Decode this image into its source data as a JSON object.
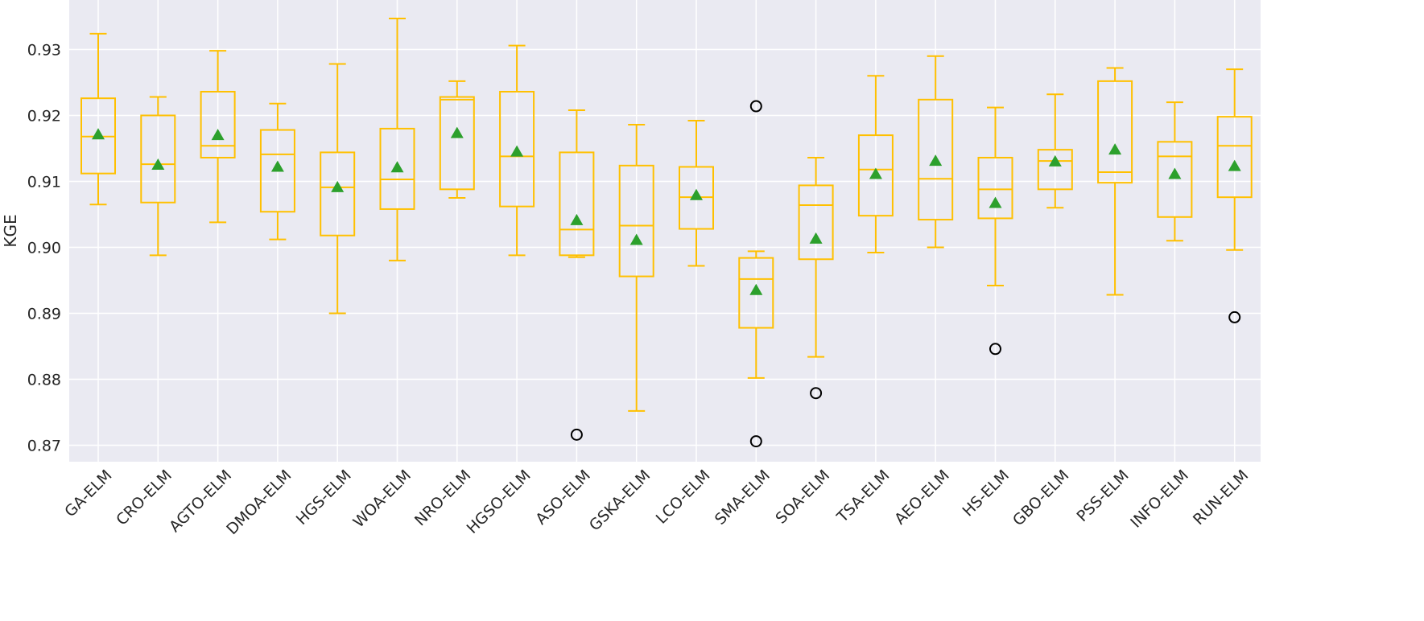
{
  "chart_data": {
    "type": "box",
    "ylabel": "KGE",
    "xlabel": "",
    "title": "",
    "ylim": [
      0.8675,
      0.9375
    ],
    "yticks": [
      0.87,
      0.88,
      0.89,
      0.9,
      0.91,
      0.92,
      0.93
    ],
    "ytick_labels": [
      "0.87",
      "0.88",
      "0.89",
      "0.90",
      "0.91",
      "0.92",
      "0.93"
    ],
    "grid": true,
    "colors": {
      "box": "#FFC000",
      "mean_marker": "#2CA02C",
      "outlier": "#000000",
      "plot_background": "#EAEAF2",
      "grid": "#FFFFFF"
    },
    "categories": [
      "GA-ELM",
      "CRO-ELM",
      "AGTO-ELM",
      "DMOA-ELM",
      "HGS-ELM",
      "WOA-ELM",
      "NRO-ELM",
      "HGSO-ELM",
      "ASO-ELM",
      "GSKA-ELM",
      "LCO-ELM",
      "SMA-ELM",
      "SOA-ELM",
      "TSA-ELM",
      "AEO-ELM",
      "HS-ELM",
      "GBO-ELM",
      "PSS-ELM",
      "INFO-ELM",
      "RUN-ELM"
    ],
    "boxes": [
      {
        "whisker_low": 0.9065,
        "q1": 0.9112,
        "median": 0.9168,
        "q3": 0.9226,
        "whisker_high": 0.9324,
        "mean": 0.9171,
        "outliers": []
      },
      {
        "whisker_low": 0.8988,
        "q1": 0.9068,
        "median": 0.9126,
        "q3": 0.92,
        "whisker_high": 0.9228,
        "mean": 0.9125,
        "outliers": []
      },
      {
        "whisker_low": 0.9038,
        "q1": 0.9136,
        "median": 0.9154,
        "q3": 0.9236,
        "whisker_high": 0.9298,
        "mean": 0.917,
        "outliers": []
      },
      {
        "whisker_low": 0.9012,
        "q1": 0.9054,
        "median": 0.9141,
        "q3": 0.9178,
        "whisker_high": 0.9218,
        "mean": 0.9122,
        "outliers": []
      },
      {
        "whisker_low": 0.89,
        "q1": 0.9018,
        "median": 0.9091,
        "q3": 0.9144,
        "whisker_high": 0.9278,
        "mean": 0.9091,
        "outliers": []
      },
      {
        "whisker_low": 0.898,
        "q1": 0.9058,
        "median": 0.9103,
        "q3": 0.918,
        "whisker_high": 0.9347,
        "mean": 0.9121,
        "outliers": []
      },
      {
        "whisker_low": 0.9075,
        "q1": 0.9088,
        "median": 0.9224,
        "q3": 0.9228,
        "whisker_high": 0.9252,
        "mean": 0.9173,
        "outliers": []
      },
      {
        "whisker_low": 0.8988,
        "q1": 0.9062,
        "median": 0.9138,
        "q3": 0.9236,
        "whisker_high": 0.9306,
        "mean": 0.9145,
        "outliers": []
      },
      {
        "whisker_low": 0.8985,
        "q1": 0.8988,
        "median": 0.9027,
        "q3": 0.9144,
        "whisker_high": 0.9208,
        "mean": 0.9041,
        "outliers": [
          0.8716
        ]
      },
      {
        "whisker_low": 0.8752,
        "q1": 0.8956,
        "median": 0.9033,
        "q3": 0.9124,
        "whisker_high": 0.9186,
        "mean": 0.9011,
        "outliers": []
      },
      {
        "whisker_low": 0.8972,
        "q1": 0.9028,
        "median": 0.9076,
        "q3": 0.9122,
        "whisker_high": 0.9192,
        "mean": 0.9079,
        "outliers": []
      },
      {
        "whisker_low": 0.8802,
        "q1": 0.8878,
        "median": 0.8952,
        "q3": 0.8984,
        "whisker_high": 0.8994,
        "mean": 0.8935,
        "outliers": [
          0.9214,
          0.8706
        ]
      },
      {
        "whisker_low": 0.8834,
        "q1": 0.8982,
        "median": 0.9064,
        "q3": 0.9094,
        "whisker_high": 0.9136,
        "mean": 0.9013,
        "outliers": [
          0.8779
        ]
      },
      {
        "whisker_low": 0.8992,
        "q1": 0.9048,
        "median": 0.9118,
        "q3": 0.917,
        "whisker_high": 0.926,
        "mean": 0.9111,
        "outliers": []
      },
      {
        "whisker_low": 0.9,
        "q1": 0.9042,
        "median": 0.9104,
        "q3": 0.9224,
        "whisker_high": 0.929,
        "mean": 0.9131,
        "outliers": []
      },
      {
        "whisker_low": 0.8942,
        "q1": 0.9044,
        "median": 0.9088,
        "q3": 0.9136,
        "whisker_high": 0.9212,
        "mean": 0.9067,
        "outliers": [
          0.8846
        ]
      },
      {
        "whisker_low": 0.906,
        "q1": 0.9088,
        "median": 0.9131,
        "q3": 0.9148,
        "whisker_high": 0.9232,
        "mean": 0.913,
        "outliers": []
      },
      {
        "whisker_low": 0.8928,
        "q1": 0.9098,
        "median": 0.9114,
        "q3": 0.9252,
        "whisker_high": 0.9272,
        "mean": 0.9148,
        "outliers": []
      },
      {
        "whisker_low": 0.901,
        "q1": 0.9046,
        "median": 0.9138,
        "q3": 0.916,
        "whisker_high": 0.922,
        "mean": 0.9111,
        "outliers": []
      },
      {
        "whisker_low": 0.8996,
        "q1": 0.9076,
        "median": 0.9154,
        "q3": 0.9198,
        "whisker_high": 0.927,
        "mean": 0.9123,
        "outliers": [
          0.8894
        ]
      }
    ]
  }
}
